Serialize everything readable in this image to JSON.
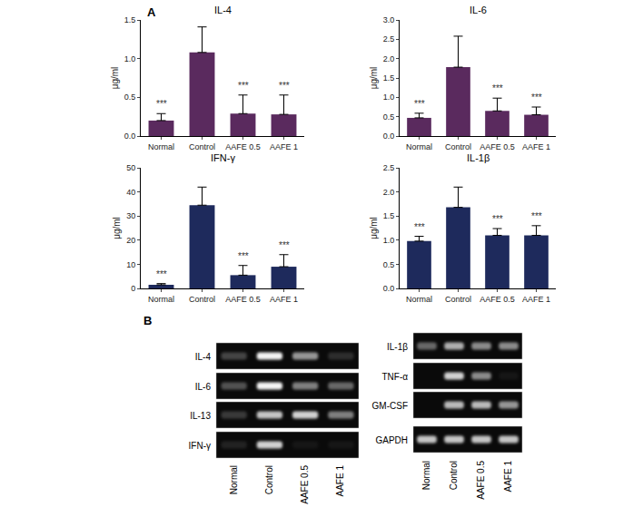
{
  "panel_labels": [
    "A",
    "B"
  ],
  "chart_data": [
    {
      "type": "bar",
      "title": "IL-4",
      "y_label": "μg/ml",
      "categories": [
        "Normal",
        "Control",
        "AAFE 0.5",
        "AAFE 1"
      ],
      "values": [
        0.2,
        1.08,
        0.29,
        0.28
      ],
      "errors": [
        0.09,
        0.33,
        0.24,
        0.25
      ],
      "color": "#5a2a5e",
      "ylim": [
        0,
        1.5
      ],
      "yticks": [
        {
          "value": 0,
          "label": "0.0"
        },
        0.5,
        {
          "value": 1,
          "label": "1.0"
        },
        1.5
      ],
      "annotations": [
        {
          "category": "Normal",
          "text": "***"
        },
        {
          "category": "AAFE 0.5",
          "text": "***"
        },
        {
          "category": "AAFE 1",
          "text": "***"
        }
      ]
    },
    {
      "type": "bar",
      "title": "IL-6",
      "y_label": "μg/ml",
      "categories": [
        "Normal",
        "Control",
        "AAFE 0.5",
        "AAFE 1"
      ],
      "values": [
        0.47,
        1.78,
        0.65,
        0.55
      ],
      "errors": [
        0.12,
        0.8,
        0.33,
        0.2
      ],
      "color": "#5a2a5e",
      "ylim": [
        0,
        3
      ],
      "yticks": [
        {
          "value": 0,
          "label": "0.0"
        },
        0.5,
        {
          "value": 1,
          "label": "1.0"
        },
        1.5,
        {
          "value": 2,
          "label": "2.0"
        },
        2.5,
        {
          "value": 3,
          "label": "3.0"
        }
      ],
      "annotations": [
        {
          "category": "Normal",
          "text": "***"
        },
        {
          "category": "AAFE 0.5",
          "text": "***"
        },
        {
          "category": "AAFE 1",
          "text": "***"
        }
      ]
    },
    {
      "type": "bar",
      "title": "IFN-γ",
      "y_label": "μg/ml",
      "categories": [
        "Normal",
        "Control",
        "AAFE 0.5",
        "AAFE 1"
      ],
      "values": [
        1.5,
        34.5,
        5.5,
        9
      ],
      "errors": [
        0.5,
        7.5,
        4,
        5
      ],
      "color": "#1e2a5c",
      "ylim": [
        0,
        50
      ],
      "yticks": [
        0,
        10,
        20,
        30,
        40,
        50
      ],
      "annotations": [
        {
          "category": "Normal",
          "text": "***"
        },
        {
          "category": "AAFE 0.5",
          "text": "***"
        },
        {
          "category": "AAFE 1",
          "text": "***"
        }
      ]
    },
    {
      "type": "bar",
      "title": "IL-1β",
      "y_label": "μg/ml",
      "categories": [
        "Normal",
        "Control",
        "AAFE 0.5",
        "AAFE 1"
      ],
      "values": [
        0.98,
        1.68,
        1.1,
        1.1
      ],
      "errors": [
        0.1,
        0.42,
        0.14,
        0.2
      ],
      "color": "#1e2a5c",
      "ylim": [
        0,
        2.5
      ],
      "yticks": [
        {
          "value": 0,
          "label": "0.0"
        },
        0.5,
        {
          "value": 1,
          "label": "1.0"
        },
        1.5,
        {
          "value": 2,
          "label": "2.0"
        },
        2.5
      ],
      "annotations": [
        {
          "category": "Normal",
          "text": "***"
        },
        {
          "category": "AAFE 0.5",
          "text": "***"
        },
        {
          "category": "AAFE 1",
          "text": "***"
        }
      ]
    }
  ],
  "gel": {
    "lanes": [
      "Normal",
      "Control",
      "AAFE 0.5",
      "AAFE 1"
    ],
    "left": [
      {
        "label": "IL-4",
        "bands": [
          0.25,
          1,
          0.6,
          0.15
        ]
      },
      {
        "label": "IL-6",
        "bands": [
          0.3,
          1,
          0.5,
          0.4
        ]
      },
      {
        "label": "IL-13",
        "bands": [
          0.2,
          0.8,
          0.85,
          0.5
        ]
      },
      {
        "label": "IFN-γ",
        "bands": [
          0.1,
          0.85,
          0.05,
          0.05
        ]
      }
    ],
    "right": [
      {
        "label": "IL-1β",
        "bands": [
          0.4,
          0.7,
          0.55,
          0.55
        ]
      },
      {
        "label": "TNF-α",
        "bands": [
          0,
          0.85,
          0.55,
          0.05
        ]
      },
      {
        "label": "GM-CSF",
        "bands": [
          0,
          0.75,
          0.75,
          0.6
        ]
      },
      {
        "label": "GAPDH",
        "bands": [
          0.8,
          0.8,
          0.8,
          0.8
        ]
      }
    ]
  }
}
